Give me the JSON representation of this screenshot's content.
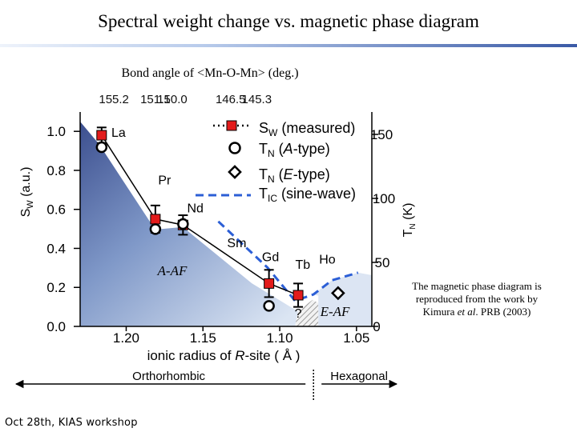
{
  "slide": {
    "title": "Spectral weight change vs. magnetic phase diagram",
    "footer": "Oct 28th, KIAS workshop",
    "credit_line1": "The magnetic phase diagram is",
    "credit_line2": "reproduced from the work by",
    "credit_line3_prefix": "Kimura ",
    "credit_line3_italic": "et al",
    "credit_line3_suffix": ". PRB (2003)"
  },
  "chart_data": {
    "type": "scatter",
    "top_axis": {
      "label": "Bond angle of <Mn-O-Mn> (deg.)",
      "ticks": [
        {
          "text": "155.2",
          "r": 1.208
        },
        {
          "text": "151.1",
          "r": 1.181
        },
        {
          "text": "150.0",
          "r": 1.17
        },
        {
          "text": "146.5",
          "r": 1.132
        },
        {
          "text": "145.3",
          "r": 1.115
        }
      ]
    },
    "xlabel": "ionic radius of R-site ( Å )",
    "xlim": [
      1.23,
      1.04
    ],
    "x_ticks": [
      {
        "text": "1.20",
        "value": 1.2
      },
      {
        "text": "1.15",
        "value": 1.15
      },
      {
        "text": "1.10",
        "value": 1.1
      },
      {
        "text": "1.05",
        "value": 1.05
      }
    ],
    "left_axis": {
      "label": "SW (a.u.)",
      "ylim": [
        0.0,
        1.05
      ],
      "ticks": [
        {
          "text": "1.0",
          "value": 1.0
        },
        {
          "text": "0.8",
          "value": 0.8
        },
        {
          "text": "0.6",
          "value": 0.6
        },
        {
          "text": "0.4",
          "value": 0.4
        },
        {
          "text": "0.2",
          "value": 0.2
        },
        {
          "text": "0.0",
          "value": 0.0
        }
      ]
    },
    "right_axis": {
      "label": "TN (K)",
      "ylim": [
        0,
        160
      ],
      "ticks": [
        {
          "text": "150",
          "value": 150
        },
        {
          "text": "100",
          "value": 100
        },
        {
          "text": "50",
          "value": 50
        },
        {
          "text": "0",
          "value": 0
        }
      ]
    },
    "series": [
      {
        "name": "SW (measured)",
        "color": "#e31b1b",
        "marker": "square",
        "points": [
          {
            "x": 1.216,
            "y": 0.98,
            "err": 0.04
          },
          {
            "x": 1.181,
            "y": 0.55,
            "err": 0.07
          },
          {
            "x": 1.163,
            "y": 0.52,
            "err": 0.05
          },
          {
            "x": 1.107,
            "y": 0.22,
            "err": 0.07
          },
          {
            "x": 1.088,
            "y": 0.16,
            "err": 0.06
          }
        ]
      },
      {
        "name": "TN (A-type)",
        "marker": "circle",
        "points": [
          {
            "x": 1.216,
            "y": 140
          },
          {
            "x": 1.181,
            "y": 76
          },
          {
            "x": 1.163,
            "y": 80
          },
          {
            "x": 1.107,
            "y": 16
          }
        ]
      },
      {
        "name": "TN (E-type)",
        "marker": "diamond",
        "points": [
          {
            "x": 1.062,
            "y": 26
          }
        ]
      },
      {
        "name": "TIC (sine-wave)",
        "color": "#2c5fd6",
        "line": "dashed",
        "points": [
          {
            "x": 1.14,
            "y": 82
          },
          {
            "x": 1.108,
            "y": 46
          },
          {
            "x": 1.09,
            "y": 20
          },
          {
            "x": 1.078,
            "y": 25
          },
          {
            "x": 1.066,
            "y": 36
          },
          {
            "x": 1.049,
            "y": 42
          }
        ]
      }
    ],
    "phase_boundary": {
      "points": [
        {
          "x": 1.216,
          "y": 140
        },
        {
          "x": 1.181,
          "y": 76
        },
        {
          "x": 1.163,
          "y": 78
        },
        {
          "x": 1.118,
          "y": 34
        },
        {
          "x": 1.088,
          "y": 12
        }
      ]
    },
    "legend": {
      "items": [
        {
          "text": "SW (measured)",
          "marker": "square"
        },
        {
          "text": "TN (A-type)",
          "marker": "circle"
        },
        {
          "text": "TN (E-type)",
          "marker": "diamond"
        },
        {
          "text": "TIC (sine-wave)",
          "marker": "dashed"
        }
      ],
      "placement": "top-right"
    },
    "point_labels": [
      {
        "text": "La",
        "x": 1.205,
        "y": 148
      },
      {
        "text": "Pr",
        "x": 1.175,
        "y": 111
      },
      {
        "text": "Nd",
        "x": 1.155,
        "y": 89
      },
      {
        "text": "Sm",
        "x": 1.128,
        "y": 62
      },
      {
        "text": "Gd",
        "x": 1.106,
        "y": 51
      },
      {
        "text": "Tb",
        "x": 1.085,
        "y": 45
      },
      {
        "text": "Ho",
        "x": 1.069,
        "y": 49
      },
      {
        "text": "?",
        "x": 1.088,
        "y": 7
      }
    ],
    "phase_labels": [
      {
        "text": "A-AF",
        "x": 1.17,
        "y": 40
      },
      {
        "text": "E-AF",
        "x": 1.064,
        "y": 8
      }
    ],
    "structure_labels": {
      "left": "Orthorhombic",
      "right": "Hexagonal",
      "boundary_x": 1.078
    }
  }
}
